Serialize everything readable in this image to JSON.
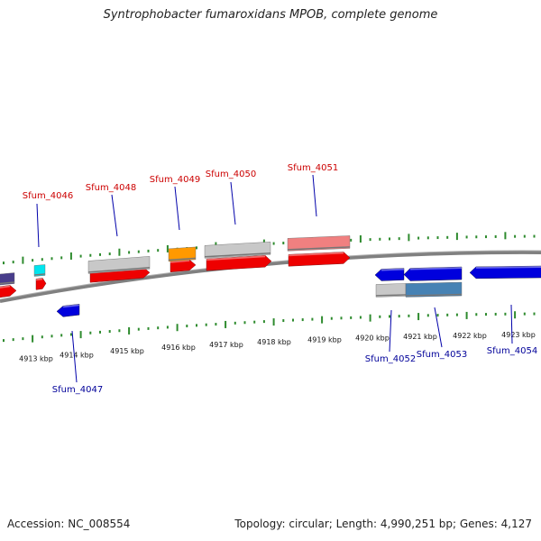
{
  "title": "Syntrophobacter fumaroxidans MPOB, complete genome",
  "accession": "Accession: NC_008554",
  "summary": "Topology: circular; Length: 4,990,251 bp; Genes: 4,127",
  "colors": {
    "backbone": "#808080",
    "tick": "#2e8b2e",
    "label_top": "#cc0000",
    "label_bottom": "#000099",
    "red": "#ee0000",
    "gray": "#c8c8c8",
    "orange": "#ff9900",
    "pink": "#f08080",
    "cyan": "#00e5ee",
    "blue": "#0000dd",
    "steelblue": "#4682b4",
    "slate": "#483d8b"
  },
  "kbp_labels": [
    "4913 kbp",
    "4914 kbp",
    "4915 kbp",
    "4916 kbp",
    "4917 kbp",
    "4918 kbp",
    "4919 kbp",
    "4920 kbp",
    "4921 kbp",
    "4922 kbp",
    "4923 kbp"
  ],
  "gene_labels_top": [
    "Sfum_4046",
    "Sfum_4048",
    "Sfum_4049",
    "Sfum_4050",
    "Sfum_4051"
  ],
  "gene_labels_bottom": [
    "Sfum_4047",
    "Sfum_4052",
    "Sfum_4053",
    "Sfum_4054"
  ]
}
